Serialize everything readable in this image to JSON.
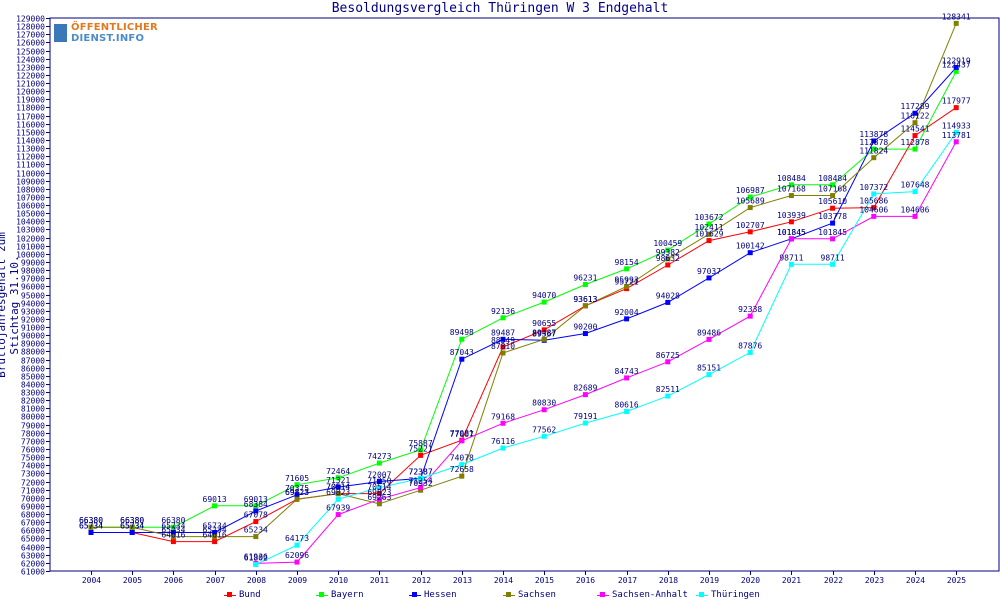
{
  "title": "Besoldungsvergleich Thüringen W 3 Endgehalt",
  "ylabel": "Bruttojahresgehalt zum Stichtag 31.10.",
  "logo": {
    "line1": "ÖFFENTLICHER",
    "line2": "DIENST.INFO"
  },
  "chart_data": {
    "type": "line",
    "title": "Besoldungsvergleich Thüringen W 3 Endgehalt",
    "xlabel": "",
    "ylabel": "Bruttojahresgehalt zum Stichtag 31.10.",
    "ylim": [
      61000,
      129000
    ],
    "ytick_step": 1000,
    "grid": false,
    "legend_position": "bottom",
    "categories": [
      "2004",
      "2005",
      "2006",
      "2007",
      "2008",
      "2009",
      "2010",
      "2011",
      "2012",
      "2013",
      "2014",
      "2015",
      "2016",
      "2017",
      "2018",
      "2019",
      "2020",
      "2021",
      "2022",
      "2023",
      "2024",
      "2025"
    ],
    "series": [
      {
        "name": "Bund",
        "color": "#ff0000",
        "values": [
          65734,
          65734,
          64616,
          64616,
          67078,
          69823,
          70514,
          70514,
          75221,
          77081,
          88549,
          90655,
          93613,
          95721,
          98632,
          101629,
          102707,
          103939,
          105610,
          105686,
          114541,
          117977
        ]
      },
      {
        "name": "Bayern",
        "color": "#00ff00",
        "values": [
          66380,
          66380,
          66380,
          69013,
          69013,
          71605,
          72464,
          74273,
          75887,
          89498,
          92136,
          94070,
          96231,
          98154,
          100459,
          103672,
          106987,
          108484,
          108484,
          112878,
          112878,
          122437
        ]
      },
      {
        "name": "Hessen",
        "color": "#0000ff",
        "values": [
          65734,
          65734,
          65734,
          65734,
          68384,
          70375,
          71321,
          72007,
          72387,
          87043,
          89487,
          89367,
          90200,
          92004,
          94028,
          97037,
          100142,
          101845,
          103778,
          113878,
          117289,
          122919
        ]
      },
      {
        "name": "Sachsen",
        "color": "#808000",
        "values": [
          66380,
          66380,
          65234,
          65234,
          65234,
          69823,
          70514,
          69263,
          70932,
          72658,
          87810,
          89487,
          93613,
          95993,
          99382,
          102411,
          105689,
          107168,
          107168,
          111824,
          116122,
          128341
        ]
      },
      {
        "name": "Sachsen-Anhalt",
        "color": "#ff00ff",
        "values": [
          null,
          null,
          null,
          null,
          61936,
          62096,
          67939,
          69823,
          71254,
          77007,
          79168,
          80830,
          82689,
          84743,
          86725,
          89486,
          92338,
          101845,
          101845,
          104606,
          104606,
          113781
        ]
      },
      {
        "name": "Thüringen",
        "color": "#00ffff",
        "values": [
          null,
          null,
          null,
          null,
          61802,
          64173,
          69823,
          71250,
          72387,
          74078,
          76116,
          77562,
          79191,
          80616,
          82511,
          85151,
          87876,
          98711,
          98711,
          107372,
          107648,
          114933
        ]
      }
    ]
  }
}
